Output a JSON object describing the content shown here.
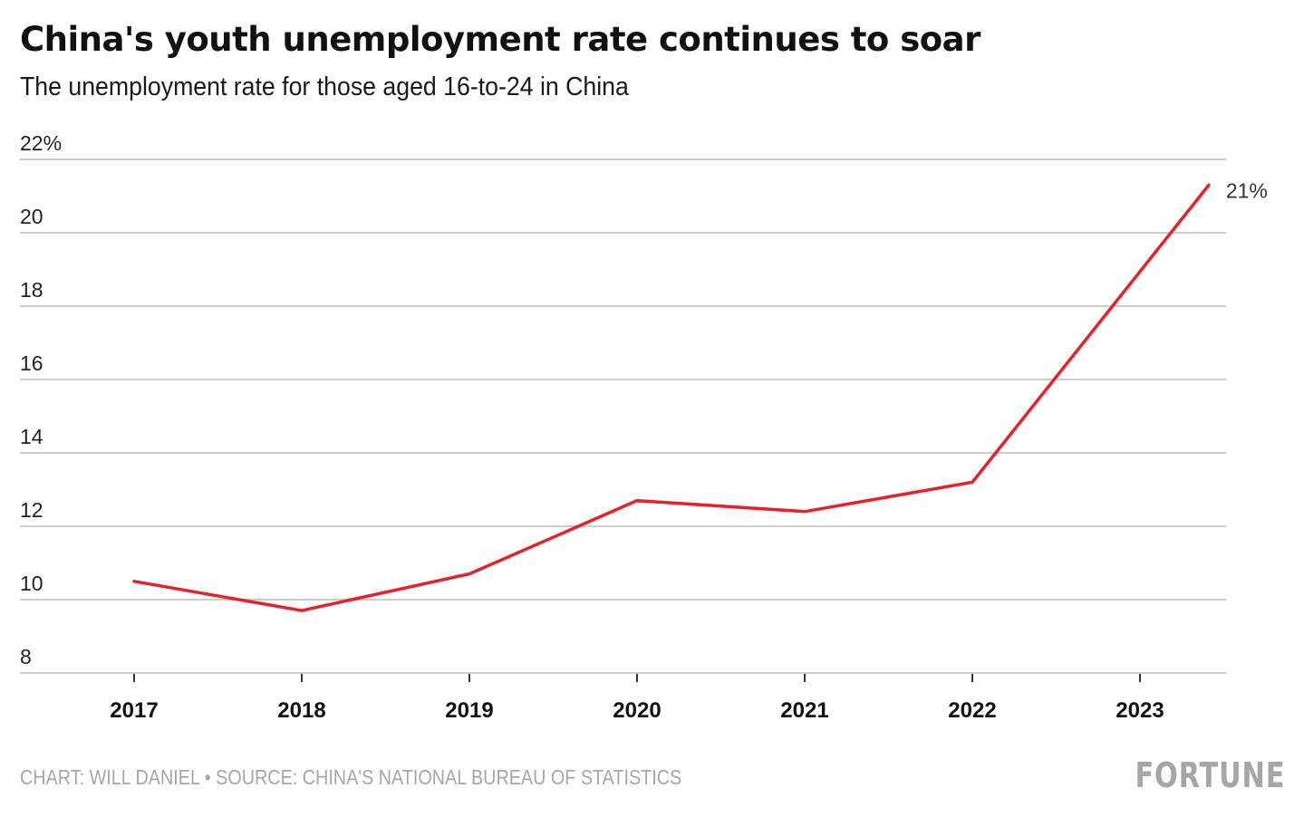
{
  "header": {
    "title": "China's youth unemployment rate continues to soar",
    "subtitle": "The unemployment rate for those aged 16-to-24 in China"
  },
  "footer": {
    "credit": "CHART: WILL DANIEL • SOURCE: CHINA'S NATIONAL BUREAU OF STATISTICS",
    "brand": "FORTUNE"
  },
  "colors": {
    "line": "#e8202a",
    "grid": "#cccccc",
    "footer_text": "#a6a6a6"
  },
  "chart_data": {
    "type": "line",
    "title": "China's youth unemployment rate continues to soar",
    "subtitle": "The unemployment rate for those aged 16-to-24 in China",
    "xlabel": "",
    "ylabel": "",
    "xlim": [
      2016.85,
      2023.6
    ],
    "ylim": [
      8,
      22
    ],
    "grid": true,
    "legend": "none",
    "x_ticks": [
      2017,
      2018,
      2019,
      2020,
      2021,
      2022,
      2023
    ],
    "x_tick_labels": [
      "2017",
      "2018",
      "2019",
      "2020",
      "2021",
      "2022",
      "2023"
    ],
    "y_ticks": [
      8,
      10,
      12,
      14,
      16,
      18,
      20,
      22
    ],
    "y_tick_labels": [
      "8",
      "10",
      "12",
      "14",
      "16",
      "18",
      "20",
      "22%"
    ],
    "series": [
      {
        "name": "Youth unemployment rate (16-24)",
        "x": [
          2017,
          2018,
          2019,
          2020,
          2021,
          2022,
          2023.41
        ],
        "values": [
          10.5,
          9.7,
          10.7,
          12.7,
          12.4,
          13.2,
          21.3
        ]
      }
    ],
    "annotations": [
      {
        "text": "21%",
        "target": "last-point"
      }
    ]
  }
}
